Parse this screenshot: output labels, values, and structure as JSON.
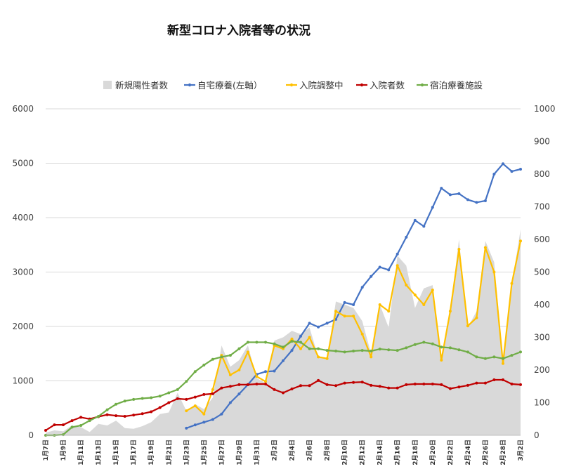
{
  "chart_data": {
    "type": "line",
    "title": "新型コロナ入院者等の状況",
    "x": [
      "1月7日",
      "1月8日",
      "1月9日",
      "1月10日",
      "1月11日",
      "1月12日",
      "1月13日",
      "1月14日",
      "1月15日",
      "1月16日",
      "1月17日",
      "1月18日",
      "1月19日",
      "1月20日",
      "1月21日",
      "1月22日",
      "1月23日",
      "1月24日",
      "1月25日",
      "1月26日",
      "1月27日",
      "1月28日",
      "1月29日",
      "1月30日",
      "1月31日",
      "2月1日",
      "2月2日",
      "2月3日",
      "2月4日",
      "2月5日",
      "2月6日",
      "2月7日",
      "2月8日",
      "2月9日",
      "2月10日",
      "2月11日",
      "2月12日",
      "2月13日",
      "2月14日",
      "2月15日",
      "2月16日",
      "2月17日",
      "2月18日",
      "2月19日",
      "2月20日",
      "2月21日",
      "2月22日",
      "2月23日",
      "2月24日",
      "2月25日",
      "2月26日",
      "2月27日",
      "2月28日",
      "3月1日",
      "3月2日"
    ],
    "x_tick_labels": [
      "1月7日",
      "1月9日",
      "1月11日",
      "1月13日",
      "1月15日",
      "1月17日",
      "1月19日",
      "1月21日",
      "1月23日",
      "1月25日",
      "1月27日",
      "1月29日",
      "1月31日",
      "2月2日",
      "2月4日",
      "2月6日",
      "2月8日",
      "2月10日",
      "2月12日",
      "2月14日",
      "2月16日",
      "2月18日",
      "2月20日",
      "2月22日",
      "2月24日",
      "2月26日",
      "2月28日",
      "3月2日"
    ],
    "y_left": {
      "range": [
        0,
        6000
      ],
      "ticks": [
        "0",
        "1000",
        "2000",
        "3000",
        "4000",
        "5000",
        "6000"
      ]
    },
    "y_right": {
      "range": [
        0,
        1000
      ],
      "ticks": [
        "0",
        "100",
        "200",
        "300",
        "400",
        "500",
        "600",
        "700",
        "800",
        "900",
        "1000"
      ]
    },
    "grid": true,
    "legend_position": "top",
    "series": [
      {
        "name": "新規陽性者数",
        "kind": "area",
        "axis": "right",
        "color": "#d9d9d9",
        "values": [
          8,
          15,
          12,
          30,
          25,
          10,
          35,
          30,
          45,
          22,
          20,
          28,
          40,
          65,
          70,
          130,
          75,
          95,
          80,
          115,
          275,
          210,
          230,
          275,
          175,
          160,
          290,
          300,
          320,
          310,
          330,
          240,
          235,
          410,
          400,
          390,
          350,
          250,
          400,
          330,
          550,
          520,
          390,
          450,
          460,
          235,
          380,
          600,
          330,
          380,
          595,
          530,
          230,
          460,
          630
        ]
      },
      {
        "name": "自宅療養(左軸）",
        "kind": "line",
        "axis": "left",
        "color": "#4472c4",
        "values": [
          null,
          null,
          null,
          null,
          null,
          null,
          null,
          null,
          null,
          null,
          null,
          null,
          null,
          null,
          null,
          null,
          130,
          190,
          240,
          290,
          390,
          600,
          760,
          930,
          1120,
          1170,
          1180,
          1370,
          1560,
          1820,
          2060,
          1990,
          2060,
          2130,
          2440,
          2400,
          2720,
          2920,
          3090,
          3040,
          3330,
          3640,
          3950,
          3840,
          4190,
          4540,
          4420,
          4440,
          4330,
          4280,
          4310,
          4800,
          4990,
          4850,
          4890
        ]
      },
      {
        "name": "入院調整中",
        "kind": "line",
        "axis": "right",
        "color": "#ffc000",
        "values": [
          null,
          null,
          null,
          null,
          null,
          null,
          null,
          null,
          null,
          null,
          null,
          null,
          null,
          null,
          null,
          null,
          75,
          90,
          65,
          140,
          245,
          185,
          200,
          255,
          180,
          165,
          275,
          265,
          295,
          265,
          300,
          240,
          235,
          380,
          365,
          365,
          310,
          240,
          400,
          380,
          520,
          460,
          430,
          400,
          445,
          230,
          380,
          570,
          335,
          360,
          575,
          500,
          220,
          465,
          595
        ]
      },
      {
        "name": "入院者数",
        "kind": "line",
        "axis": "right",
        "color": "#c00000",
        "values": [
          15,
          32,
          32,
          45,
          55,
          50,
          57,
          63,
          60,
          58,
          62,
          66,
          72,
          85,
          100,
          112,
          110,
          117,
          125,
          127,
          145,
          150,
          155,
          155,
          157,
          157,
          140,
          130,
          142,
          152,
          152,
          168,
          155,
          152,
          160,
          162,
          163,
          153,
          150,
          145,
          145,
          155,
          157,
          157,
          157,
          155,
          143,
          148,
          153,
          160,
          160,
          170,
          170,
          157,
          155
        ]
      },
      {
        "name": "宿泊療養施設",
        "kind": "line",
        "axis": "right",
        "color": "#70ad47",
        "values": [
          0,
          0,
          2,
          25,
          30,
          45,
          58,
          78,
          95,
          105,
          110,
          113,
          115,
          120,
          130,
          140,
          165,
          195,
          215,
          233,
          240,
          245,
          265,
          285,
          285,
          285,
          280,
          270,
          288,
          285,
          265,
          265,
          260,
          258,
          255,
          258,
          260,
          258,
          264,
          262,
          260,
          268,
          278,
          285,
          280,
          270,
          268,
          262,
          255,
          240,
          235,
          240,
          235,
          245,
          255
        ]
      }
    ]
  }
}
